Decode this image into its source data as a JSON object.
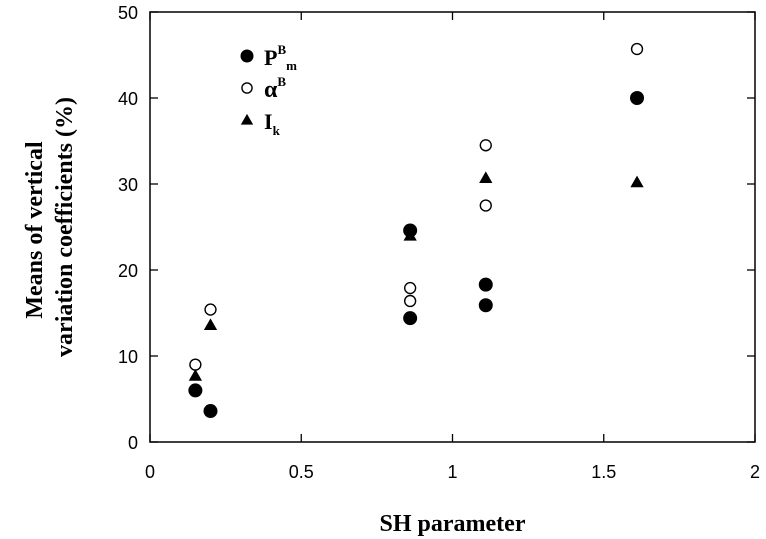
{
  "chart_data": {
    "type": "scatter",
    "xlabel": "SH parameter",
    "ylabel_lines": [
      "Means of vertical",
      "variation coefficients (%)"
    ],
    "xlim": [
      0,
      2
    ],
    "ylim": [
      0,
      50
    ],
    "xticks": [
      0,
      0.5,
      1,
      1.5,
      2
    ],
    "xtick_labels": [
      "0",
      "0.5",
      "1",
      "1.5",
      "2"
    ],
    "yticks": [
      0,
      10,
      20,
      30,
      40,
      50
    ],
    "ytick_labels": [
      "0",
      "10",
      "20",
      "30",
      "40",
      "50"
    ],
    "legend_placement": "top-left",
    "series": [
      {
        "name": "P^B_m",
        "label_base": "P",
        "label_sup": "B",
        "label_sub": "m",
        "marker": "filled-circle",
        "x": [
          0.15,
          0.2,
          0.86,
          0.86,
          1.11,
          1.11,
          1.61
        ],
        "y": [
          6.0,
          3.6,
          24.6,
          14.4,
          18.3,
          15.9,
          40.0
        ]
      },
      {
        "name": "α^B",
        "label_base": "α",
        "label_sup": "B",
        "label_sub": "",
        "marker": "open-circle",
        "x": [
          0.15,
          0.2,
          0.86,
          0.86,
          1.11,
          1.11,
          1.61
        ],
        "y": [
          9.0,
          15.4,
          17.9,
          16.4,
          34.5,
          27.5,
          45.7
        ]
      },
      {
        "name": "I_k",
        "label_base": "I",
        "label_sup": "",
        "label_sub": "k",
        "marker": "filled-triangle",
        "x": [
          0.15,
          0.2,
          0.86,
          1.11,
          1.61
        ],
        "y": [
          7.7,
          13.6,
          24.0,
          30.7,
          30.2
        ]
      }
    ]
  }
}
